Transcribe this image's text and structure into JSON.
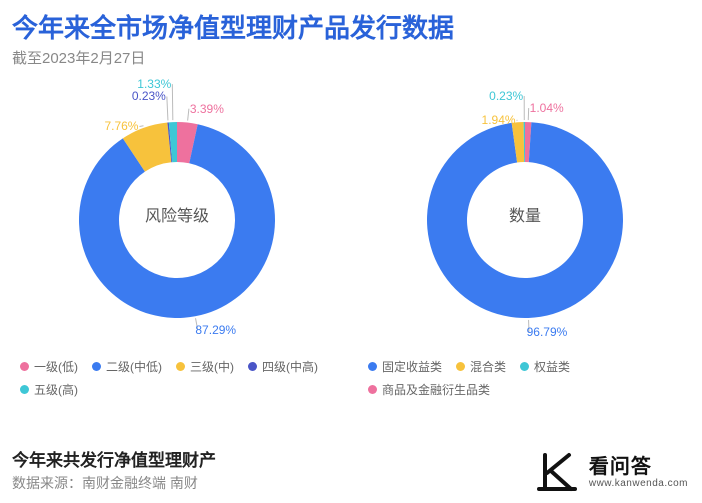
{
  "title": "今年来全市场净值型理财产品发行数据",
  "title_color": "#2962d9",
  "subtitle": "截至2023年2月27日",
  "subtitle_color": "#888888",
  "background_color": "#ffffff",
  "chart_left": {
    "type": "donut",
    "center_label": "风险等级",
    "center_label_color": "#555555",
    "inner_radius": 58,
    "outer_radius": 98,
    "start_angle_deg": -90,
    "label_fontsize": 12,
    "slices": [
      {
        "name": "一级(低)",
        "value": 3.39,
        "color": "#ee719e",
        "label": "3.39%"
      },
      {
        "name": "二级(中低)",
        "value": 87.29,
        "color": "#3b7bf0",
        "label": "87.29%"
      },
      {
        "name": "三级(中)",
        "value": 7.76,
        "color": "#f7c23c",
        "label": "7.76%"
      },
      {
        "name": "四级(中高)",
        "value": 0.23,
        "color": "#4a55c7",
        "label": "0.23%"
      },
      {
        "name": "五级(高)",
        "value": 1.33,
        "color": "#3ec7d6",
        "label": "1.33%"
      }
    ],
    "legend_order": [
      "一级(低)",
      "二级(中低)",
      "三级(中)",
      "四级(中高)",
      "五级(高)"
    ]
  },
  "chart_right": {
    "type": "donut",
    "center_label": "数量",
    "center_label_color": "#555555",
    "inner_radius": 58,
    "outer_radius": 98,
    "start_angle_deg": -90,
    "label_fontsize": 12,
    "slices": [
      {
        "name": "商品及金融衍生品类",
        "value": 1.04,
        "color": "#ee719e",
        "label": "1.04%"
      },
      {
        "name": "固定收益类",
        "value": 96.79,
        "color": "#3b7bf0",
        "label": "96.79%"
      },
      {
        "name": "混合类",
        "value": 1.94,
        "color": "#f7c23c",
        "label": "1.94%"
      },
      {
        "name": "权益类",
        "value": 0.23,
        "color": "#3ec7d6",
        "label": "0.23%"
      }
    ],
    "legend_order": [
      "固定收益类",
      "混合类",
      "权益类",
      "商品及金融衍生品类"
    ]
  },
  "footer": {
    "line1": "今年来共发行净值型理财产",
    "line2": "数据来源：南财金融终端 南财"
  },
  "watermark": {
    "cn": "看问答",
    "url": "www.kanwenda.com",
    "color": "#111111"
  }
}
